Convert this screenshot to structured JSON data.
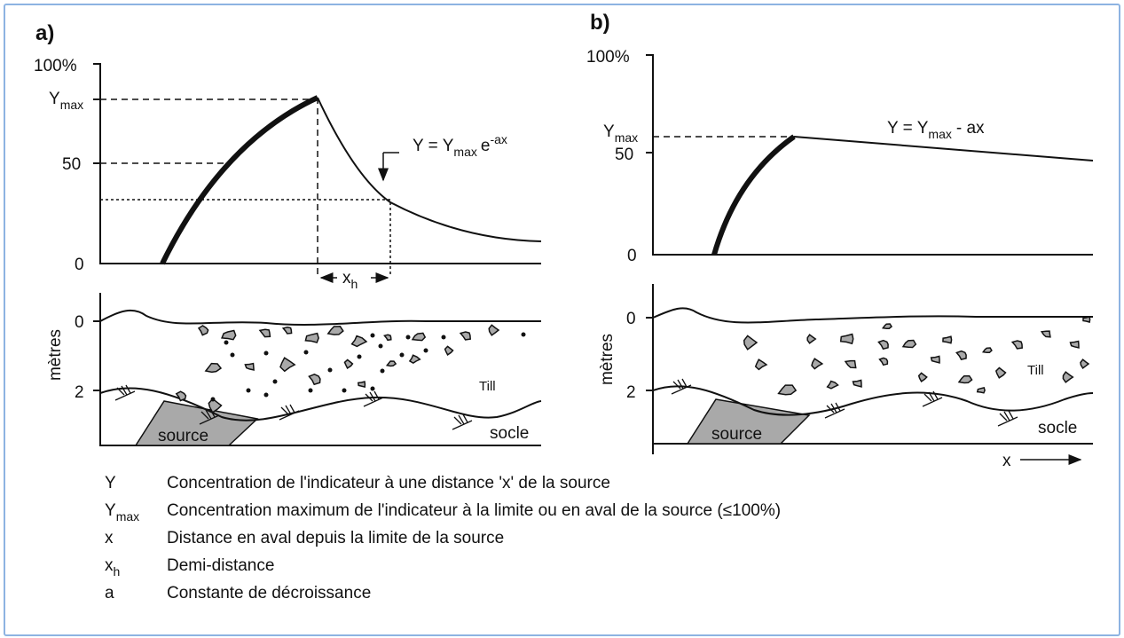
{
  "panel_a": {
    "label": "a)",
    "y_axis": {
      "top": "100%",
      "ymax": {
        "base": "Y",
        "sub": "max"
      },
      "mid": "50",
      "zero": "0"
    },
    "equation": {
      "lhs": "Y =",
      "base": "Y",
      "sub": "max",
      "rest": "e",
      "sup": "-ax"
    },
    "half_distance": {
      "base": "x",
      "sub": "h"
    },
    "depth_axis": {
      "label": "mètres",
      "top": "0",
      "bottom": "2"
    },
    "till": "Till",
    "socle": "socle",
    "source": "source"
  },
  "panel_b": {
    "label": "b)",
    "y_axis": {
      "top": "100%",
      "ymax": {
        "base": "Y",
        "sub": "max"
      },
      "mid": "50",
      "zero": "0"
    },
    "equation": {
      "lhs": "Y =",
      "base": "Y",
      "sub": "max",
      "rest": "- ax"
    },
    "depth_axis": {
      "label": "mètres",
      "top": "0",
      "bottom": "2"
    },
    "till": "Till",
    "socle": "socle",
    "source": "source",
    "x_arrow": "x"
  },
  "legend": [
    {
      "symbol": "Y",
      "text": "Concentration de l'indicateur à une distance 'x' de la source"
    },
    {
      "symbol": "Y",
      "symbol_sub": "max",
      "text": "Concentration maximum de l'indicateur à la limite ou en aval de la source (≤100%)"
    },
    {
      "symbol": "x",
      "text": "Distance en aval depuis la limite de la source"
    },
    {
      "symbol": "x",
      "symbol_sub": "h",
      "text": "Demi-distance"
    },
    {
      "symbol": "a",
      "text": "Constante de décroissance"
    }
  ]
}
